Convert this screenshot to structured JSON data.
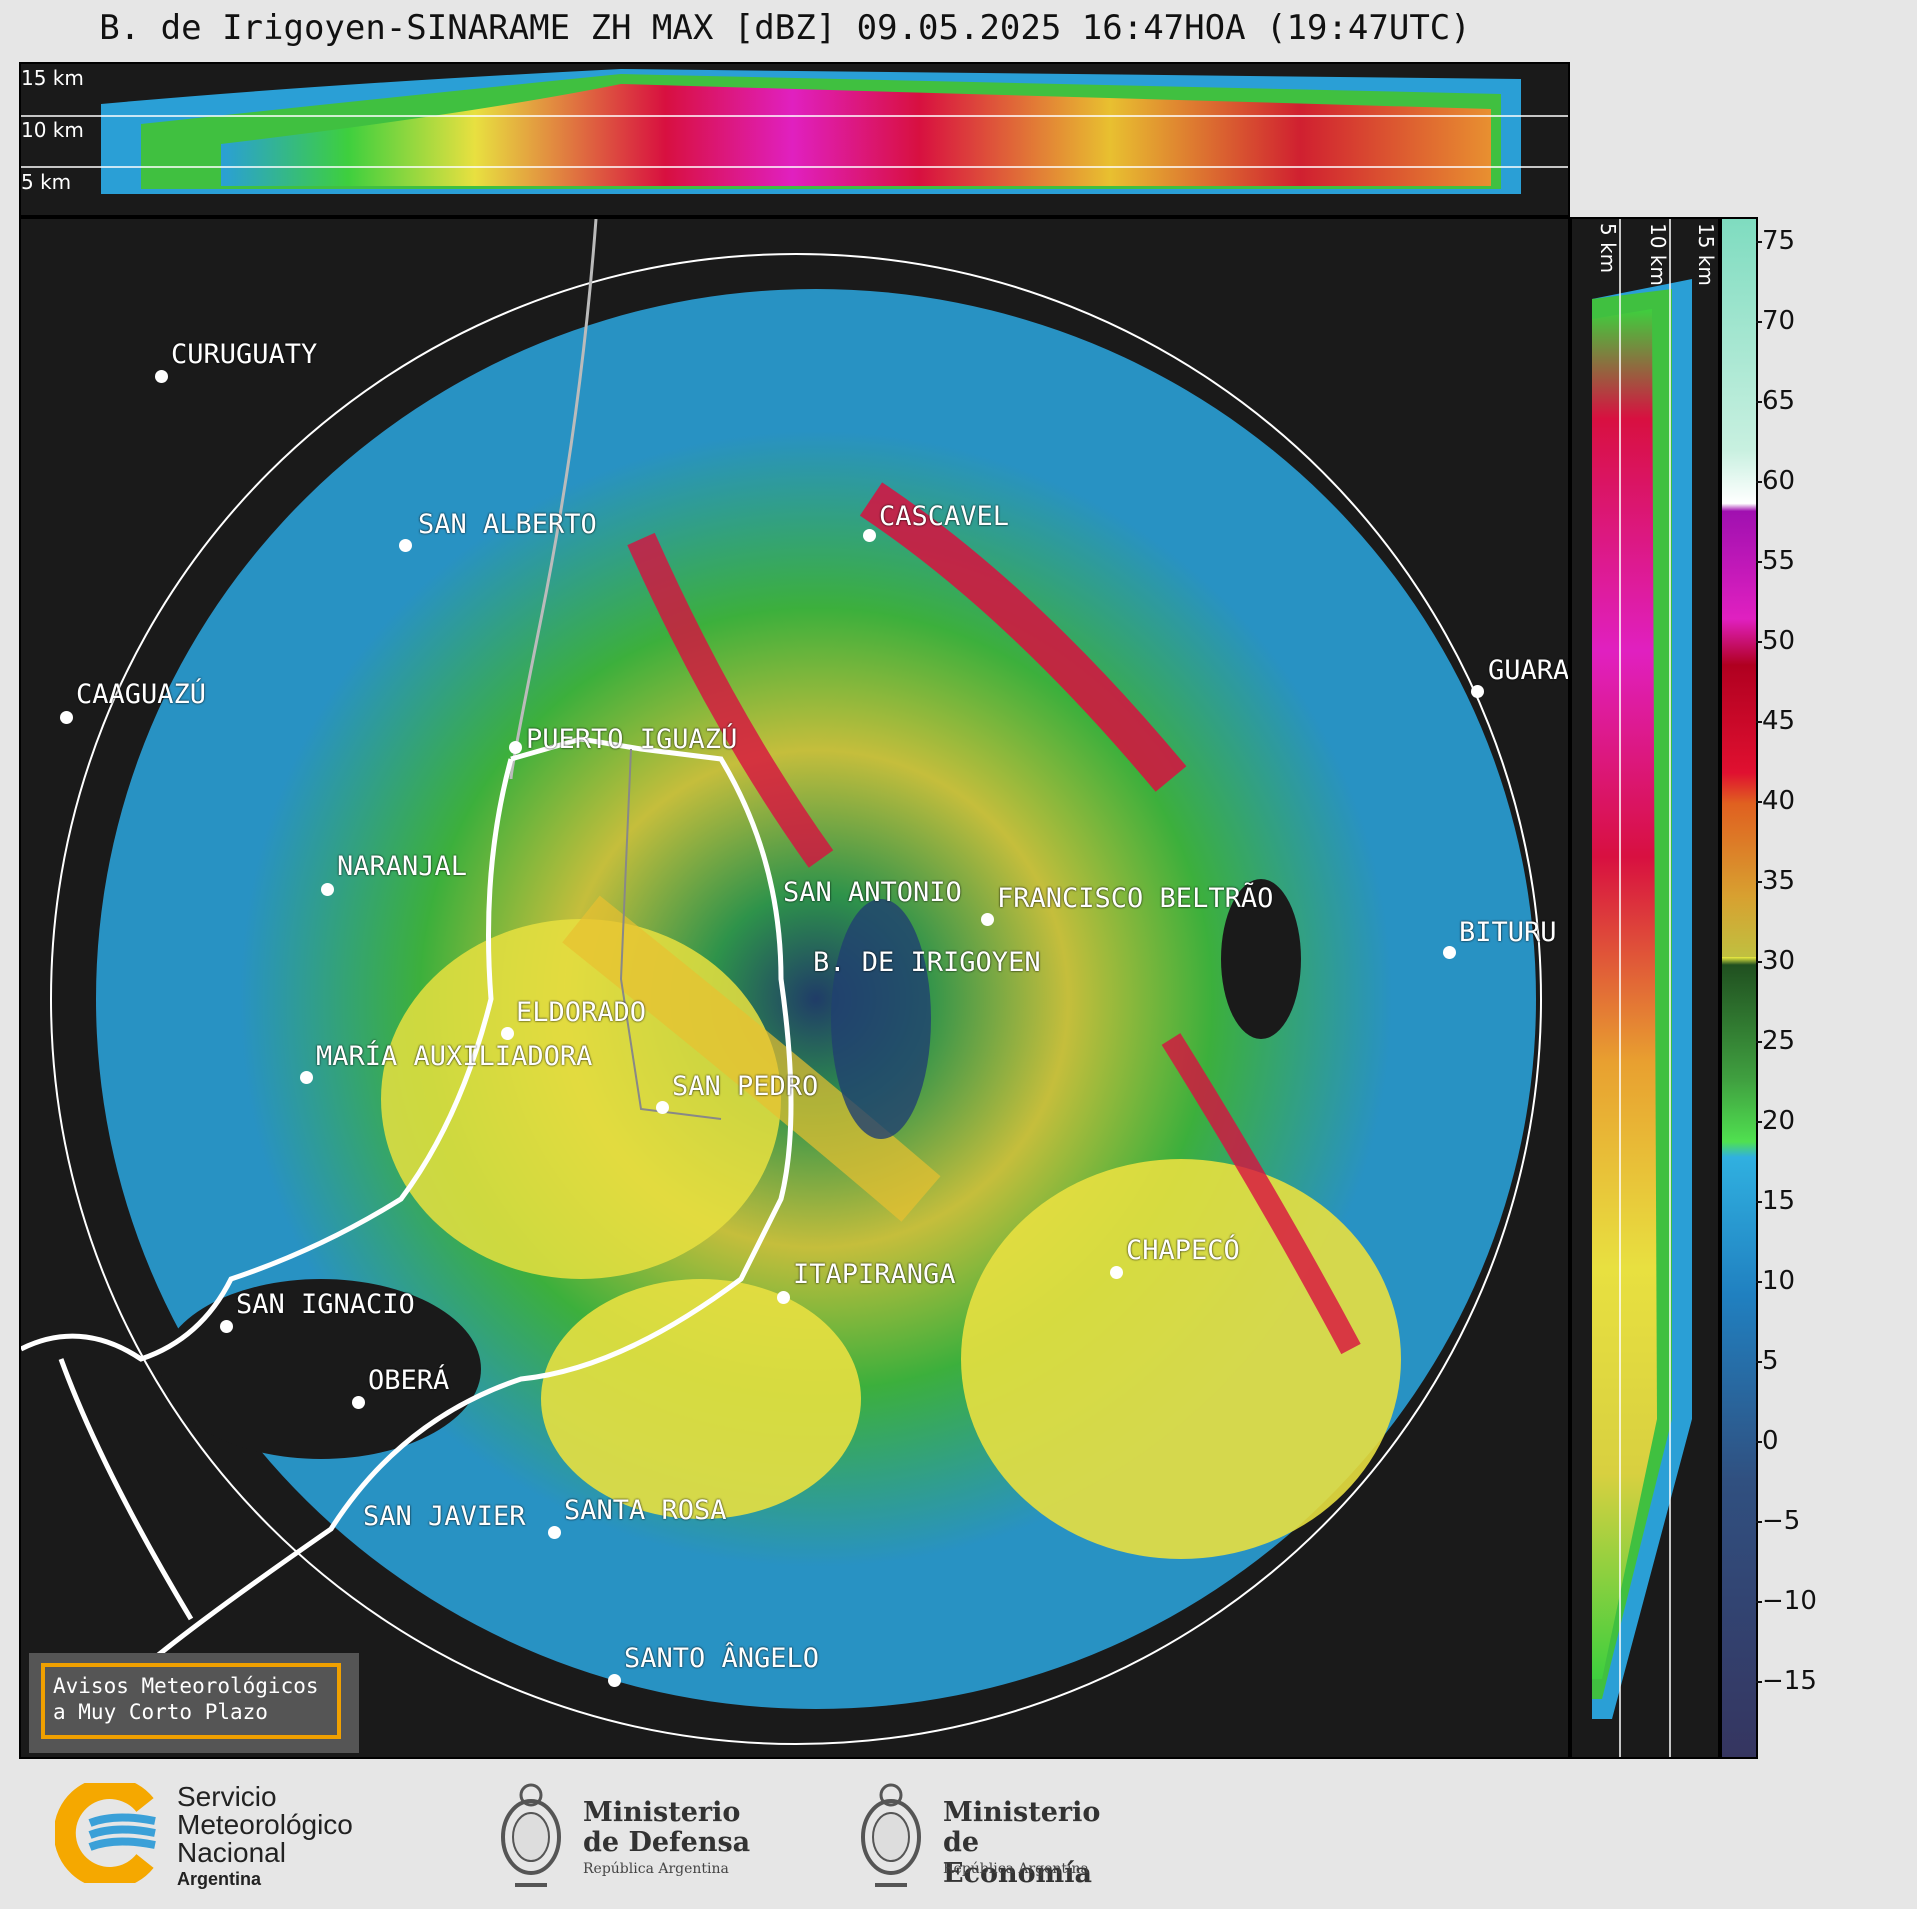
{
  "title": "B. de Irigoyen-SINARAME ZH MAX [dBZ] 09.05.2025 16:47HOA (19:47UTC)",
  "height_labels": [
    "15 km",
    "10 km",
    "5 km"
  ],
  "cities": [
    {
      "name": "CURUGUATY"
    },
    {
      "name": "SAN ALBERTO"
    },
    {
      "name": "CASCAVEL"
    },
    {
      "name": "CAAGUAZÚ"
    },
    {
      "name": "PUERTO IGUAZÚ"
    },
    {
      "name": "GUARA"
    },
    {
      "name": "NARANJAL"
    },
    {
      "name": "SAN ANTONIO"
    },
    {
      "name": "FRANCISCO BELTRÃO"
    },
    {
      "name": "BITURU"
    },
    {
      "name": "B. DE IRIGOYEN"
    },
    {
      "name": "ELDORADO"
    },
    {
      "name": "MARÍA AUXILIADORA"
    },
    {
      "name": "SAN PEDRO"
    },
    {
      "name": "CHAPECÓ"
    },
    {
      "name": "ITAPIRANGA"
    },
    {
      "name": "SAN IGNACIO"
    },
    {
      "name": "OBERÁ"
    },
    {
      "name": "SAN JAVIER"
    },
    {
      "name": "SANTA ROSA"
    },
    {
      "name": "SANTO ÂNGELO"
    }
  ],
  "aviso": {
    "line1": "Avisos Meteorológicos",
    "line2": "a Muy Corto Plazo"
  },
  "colorbar": {
    "ticks": [
      "75",
      "70",
      "65",
      "60",
      "55",
      "50",
      "45",
      "40",
      "35",
      "30",
      "25",
      "20",
      "15",
      "10",
      "5",
      "0",
      "−5",
      "−10",
      "−15"
    ]
  },
  "logos": {
    "smn": {
      "line1": "Servicio",
      "line2": "Meteorológico",
      "line3": "Nacional",
      "line4": "Argentina"
    },
    "defensa": {
      "line1": "Ministerio",
      "line2": "de Defensa",
      "line3": "República Argentina"
    },
    "economia": {
      "line1": "Ministerio",
      "line2": "de Economía",
      "line3": "República Argentina"
    }
  },
  "colors": {
    "background": "#1a1a1a",
    "smn_orange": "#f5a800",
    "smn_blue": "#3aa0d8",
    "aviso_border": "#f0a000"
  }
}
